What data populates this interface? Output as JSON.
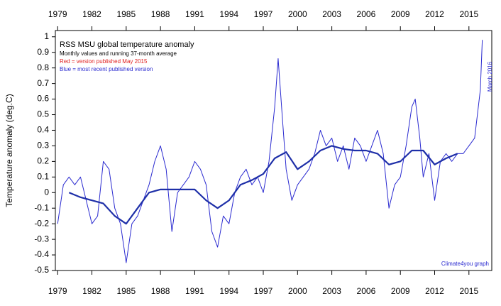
{
  "chart_data": {
    "type": "line",
    "title": "RSS MSU global temperature anomaly",
    "subtitle": "Monthly values and running 37-month average",
    "annotations": [
      "Red = version published May 2015",
      "Blue = most recent published version",
      "March 2016",
      "Climate4you graph"
    ],
    "y_label": "Temperature anomaly (deg.C)",
    "xlim": [
      1978.8,
      2017
    ],
    "ylim": [
      -0.5,
      1.04
    ],
    "xticks": [
      1979,
      1982,
      1985,
      1988,
      1991,
      1994,
      1997,
      2000,
      2003,
      2006,
      2009,
      2012,
      2015
    ],
    "yticks": [
      -0.5,
      -0.4,
      -0.3,
      -0.2,
      -0.1,
      0,
      0.1,
      0.2,
      0.3,
      0.4,
      0.5,
      0.6,
      0.7,
      0.8,
      0.9,
      1
    ],
    "series": [
      {
        "name": "Monthly values",
        "color": "#2a2ad0",
        "width": 1,
        "x": [
          1979.0,
          1979.5,
          1980.0,
          1980.5,
          1981.0,
          1981.5,
          1982.0,
          1982.5,
          1983.0,
          1983.5,
          1984.0,
          1984.5,
          1985.0,
          1985.5,
          1986.0,
          1986.5,
          1987.0,
          1987.5,
          1988.0,
          1988.5,
          1989.0,
          1989.5,
          1990.0,
          1990.5,
          1991.0,
          1991.5,
          1992.0,
          1992.5,
          1993.0,
          1993.5,
          1994.0,
          1994.5,
          1995.0,
          1995.5,
          1996.0,
          1996.5,
          1997.0,
          1997.5,
          1998.0,
          1998.3,
          1998.7,
          1999.0,
          1999.5,
          2000.0,
          2000.5,
          2001.0,
          2001.5,
          2002.0,
          2002.5,
          2003.0,
          2003.5,
          2004.0,
          2004.5,
          2005.0,
          2005.5,
          2006.0,
          2006.5,
          2007.0,
          2007.5,
          2008.0,
          2008.5,
          2009.0,
          2009.5,
          2010.0,
          2010.3,
          2010.7,
          2011.0,
          2011.5,
          2012.0,
          2012.5,
          2013.0,
          2013.5,
          2014.0,
          2014.5,
          2015.0,
          2015.5,
          2016.0,
          2016.17
        ],
        "values": [
          -0.2,
          0.05,
          0.1,
          0.05,
          0.1,
          -0.05,
          -0.2,
          -0.15,
          0.2,
          0.15,
          -0.1,
          -0.2,
          -0.45,
          -0.2,
          -0.15,
          -0.05,
          0.05,
          0.2,
          0.3,
          0.15,
          -0.25,
          0,
          0.05,
          0.1,
          0.2,
          0.15,
          0.05,
          -0.25,
          -0.35,
          -0.15,
          -0.2,
          0,
          0.1,
          0.15,
          0.05,
          0.1,
          0,
          0.2,
          0.55,
          0.86,
          0.45,
          0.15,
          -0.05,
          0.05,
          0.1,
          0.15,
          0.25,
          0.4,
          0.3,
          0.35,
          0.2,
          0.3,
          0.15,
          0.35,
          0.3,
          0.2,
          0.3,
          0.4,
          0.25,
          -0.1,
          0.05,
          0.1,
          0.3,
          0.55,
          0.6,
          0.35,
          0.1,
          0.25,
          -0.05,
          0.2,
          0.25,
          0.2,
          0.25,
          0.25,
          0.3,
          0.35,
          0.66,
          0.98
        ]
      },
      {
        "name": "Running 37-month average",
        "color": "#1e2fa8",
        "width": 2.2,
        "x": [
          1980,
          1981,
          1982,
          1983,
          1984,
          1985,
          1986,
          1987,
          1988,
          1989,
          1990,
          1991,
          1992,
          1993,
          1994,
          1995,
          1996,
          1997,
          1998,
          1999,
          2000,
          2001,
          2002,
          2003,
          2004,
          2005,
          2006,
          2007,
          2008,
          2009,
          2010,
          2011,
          2012,
          2013,
          2014
        ],
        "values": [
          0,
          -0.03,
          -0.05,
          -0.07,
          -0.15,
          -0.2,
          -0.1,
          0,
          0.02,
          0.02,
          0.02,
          0.02,
          -0.05,
          -0.1,
          -0.05,
          0.05,
          0.08,
          0.12,
          0.22,
          0.26,
          0.15,
          0.2,
          0.27,
          0.3,
          0.28,
          0.27,
          0.27,
          0.25,
          0.18,
          0.2,
          0.27,
          0.27,
          0.18,
          0.22,
          0.25
        ]
      }
    ]
  }
}
